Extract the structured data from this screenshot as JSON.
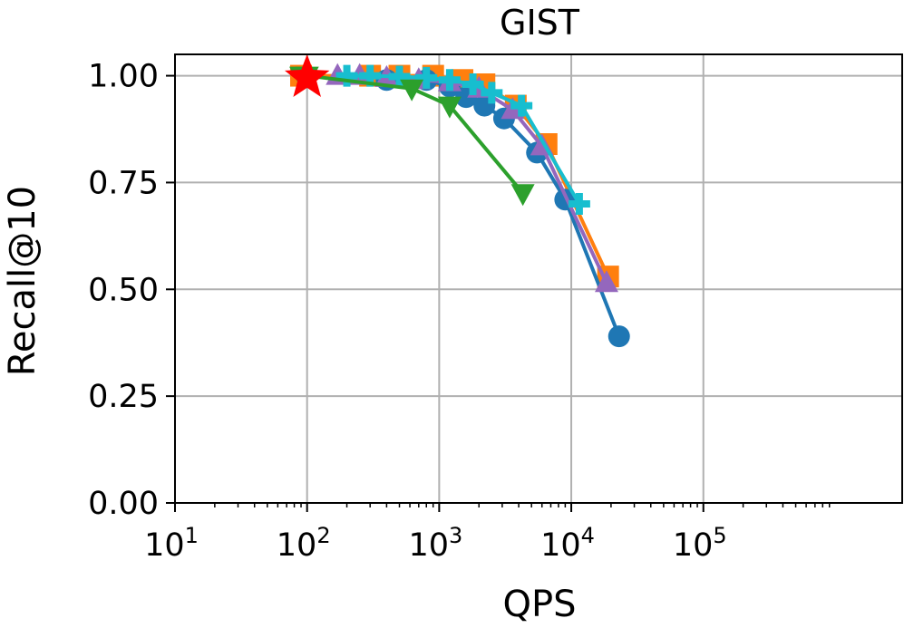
{
  "chart_data": {
    "type": "line",
    "title": "GIST",
    "xlabel": "QPS",
    "ylabel": "Recall@10",
    "xscale": "log",
    "xlim": [
      10,
      3200000
    ],
    "ylim": [
      0,
      1.05
    ],
    "grid": true,
    "xticks": [
      {
        "value": 10,
        "base": "10",
        "exp": "1"
      },
      {
        "value": 100,
        "base": "10",
        "exp": "2"
      },
      {
        "value": 1000,
        "base": "10",
        "exp": "3"
      },
      {
        "value": 10000,
        "base": "10",
        "exp": "4"
      },
      {
        "value": 100000,
        "base": "10",
        "exp": "5"
      }
    ],
    "yticks": [
      {
        "value": 0.0,
        "label": "0.00"
      },
      {
        "value": 0.25,
        "label": "0.25"
      },
      {
        "value": 0.5,
        "label": "0.50"
      },
      {
        "value": 0.75,
        "label": "0.75"
      },
      {
        "value": 1.0,
        "label": "1.00"
      }
    ],
    "series": [
      {
        "color": "#ff7f0e",
        "marker": "square",
        "points": [
          [
            90,
            1.0
          ],
          [
            300,
            1.0
          ],
          [
            500,
            1.0
          ],
          [
            900,
            1.0
          ],
          [
            1500,
            0.99
          ],
          [
            2200,
            0.98
          ],
          [
            3800,
            0.93
          ],
          [
            6500,
            0.84
          ],
          [
            19000,
            0.53
          ]
        ]
      },
      {
        "color": "#1f77b4",
        "marker": "circle",
        "points": [
          [
            400,
            0.99
          ],
          [
            800,
            0.99
          ],
          [
            1200,
            0.975
          ],
          [
            1600,
            0.95
          ],
          [
            2200,
            0.93
          ],
          [
            3100,
            0.9
          ],
          [
            5500,
            0.82
          ],
          [
            9000,
            0.71
          ],
          [
            23000,
            0.39
          ]
        ]
      },
      {
        "color": "#9467bd",
        "marker": "triangle-up",
        "points": [
          [
            170,
            1.0
          ],
          [
            250,
            1.0
          ],
          [
            400,
            0.995
          ],
          [
            700,
            0.99
          ],
          [
            1200,
            0.985
          ],
          [
            2000,
            0.97
          ],
          [
            3600,
            0.92
          ],
          [
            6000,
            0.835
          ],
          [
            18500,
            0.515
          ]
        ]
      },
      {
        "color": "#17becf",
        "marker": "plus",
        "points": [
          [
            200,
            1.0
          ],
          [
            300,
            1.0
          ],
          [
            500,
            0.998
          ],
          [
            800,
            0.995
          ],
          [
            1200,
            0.99
          ],
          [
            1800,
            0.98
          ],
          [
            2500,
            0.96
          ],
          [
            4200,
            0.93
          ],
          [
            11500,
            0.7
          ]
        ]
      },
      {
        "color": "#2ca02c",
        "marker": "triangle-down",
        "points": [
          [
            90,
            1.0
          ],
          [
            100,
            1.0
          ],
          [
            620,
            0.97
          ],
          [
            1200,
            0.93
          ],
          [
            4300,
            0.725
          ]
        ]
      },
      {
        "color": "#ff0000",
        "marker": "star",
        "points": [
          [
            100,
            0.995
          ]
        ]
      }
    ]
  }
}
